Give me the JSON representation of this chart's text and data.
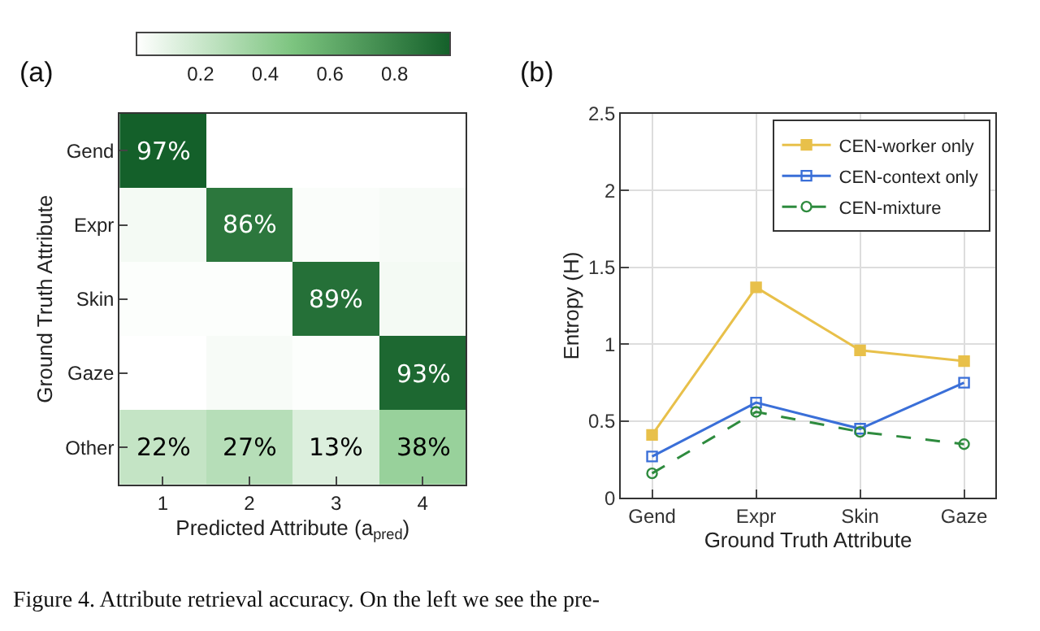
{
  "chart_data": [
    {
      "type": "heatmap",
      "title": "(a)",
      "xlabel": "Predicted Attribute (a$_{pred}$)",
      "ylabel": "Ground Truth Attribute",
      "categories": [
        "1",
        "2",
        "3",
        "4"
      ],
      "y_categories": [
        "Gend",
        "Expr",
        "Skin",
        "Gaze",
        "Other"
      ],
      "cells": [
        [
          0.97,
          0.0,
          0.0,
          0.0
        ],
        [
          0.04,
          0.86,
          0.02,
          0.03
        ],
        [
          0.01,
          0.01,
          0.89,
          0.04
        ],
        [
          0.0,
          0.03,
          0.01,
          0.93
        ],
        [
          0.22,
          0.27,
          0.13,
          0.38
        ]
      ],
      "cell_labels": [
        [
          "97%",
          null,
          null,
          null
        ],
        [
          null,
          "86%",
          null,
          null
        ],
        [
          null,
          null,
          "89%",
          null
        ],
        [
          null,
          null,
          null,
          "93%"
        ],
        [
          "22%",
          "27%",
          "13%",
          "38%"
        ]
      ],
      "clim": [
        0,
        0.97
      ],
      "cticks": [
        0.2,
        0.4,
        0.6,
        0.8
      ],
      "annotations": [
        "Figure 4. Attribute retrieval accuracy. On the left we see the pre-"
      ]
    },
    {
      "type": "line",
      "title": "(b)",
      "xlabel": "Ground Truth Attribute",
      "ylabel": "Entropy (H)",
      "categories": [
        "Gend",
        "Expr",
        "Skin",
        "Gaze"
      ],
      "ylim": [
        0,
        2.5
      ],
      "yticks": [
        0,
        0.5,
        1,
        1.5,
        2,
        2.5
      ],
      "grid": true,
      "legend": "top right",
      "series": [
        {
          "name": "CEN-worker only",
          "color": "#e8c04a",
          "marker": "square",
          "line_style": "solid",
          "values": [
            0.41,
            1.37,
            0.96,
            0.89
          ]
        },
        {
          "name": "CEN-context only",
          "color": "#3a6fd8",
          "marker": "square-open",
          "line_style": "solid",
          "values": [
            0.27,
            0.62,
            0.45,
            0.75
          ]
        },
        {
          "name": "CEN-mixture",
          "color": "#2e8b3e",
          "marker": "circle-open",
          "line_style": "dashed",
          "values": [
            0.16,
            0.56,
            0.43,
            0.35
          ]
        }
      ]
    }
  ]
}
